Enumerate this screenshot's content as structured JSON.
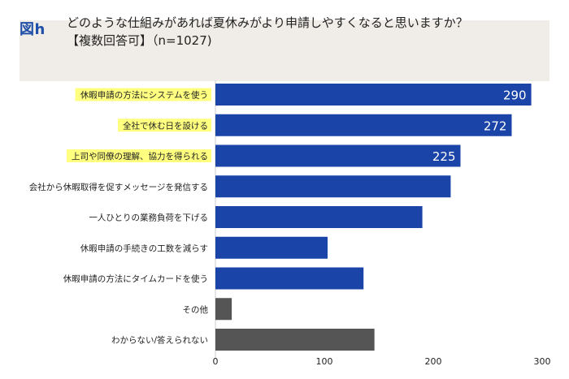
{
  "header": {
    "figure_label": "図h",
    "title_line1": "どのような仕組みがあれば夏休みがより申請しやすくなると思いますか？",
    "title_line2": "【複数回答可】（n=1027)"
  },
  "colors": {
    "bar_primary": "#1a44a8",
    "bar_other": "#555555",
    "highlight": "#ffff80",
    "header_bg": "#f0ece7",
    "figure_label": "#1f4fa8"
  },
  "chart_data": {
    "type": "bar",
    "orientation": "horizontal",
    "categories": [
      "休暇申請の方法にシステムを使う",
      "全社で休む日を設ける",
      "上司や同僚の理解、協力を得られる",
      "会社から休暇取得を促すメッセージを発信する",
      "一人ひとりの業務負荷を下げる",
      "休暇申請の手続きの工数を減らす",
      "休暇申請の方法にタイムカードを使う",
      "その他",
      "わからない/答えられない"
    ],
    "values": [
      290,
      272,
      225,
      216,
      190,
      103,
      136,
      15,
      146
    ],
    "data_labels": [
      "290",
      "272",
      "225",
      "",
      "",
      "",
      "",
      "",
      ""
    ],
    "highlighted": [
      true,
      true,
      true,
      false,
      false,
      false,
      false,
      false,
      false
    ],
    "bar_colors": [
      "primary",
      "primary",
      "primary",
      "primary",
      "primary",
      "primary",
      "primary",
      "other",
      "other"
    ],
    "xlim": [
      0,
      300
    ],
    "xticks": [
      0,
      100,
      200,
      300
    ],
    "grid": false
  }
}
